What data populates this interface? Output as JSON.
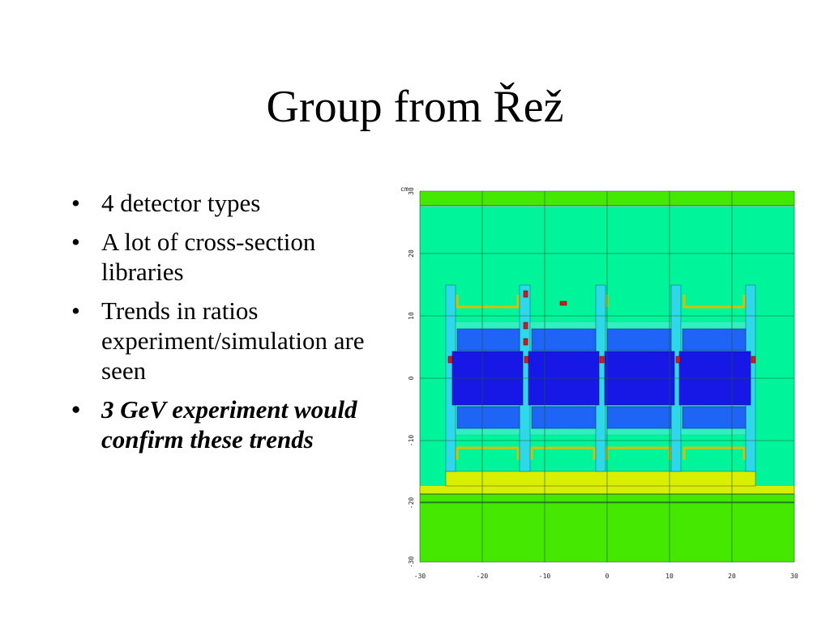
{
  "slide": {
    "title": "Group from Řež",
    "bullets": [
      {
        "text": "4 detector types",
        "emphasis": false
      },
      {
        "text": "A lot of cross-section libraries",
        "emphasis": false
      },
      {
        "text": "Trends in ratios experiment/simulation are seen",
        "emphasis": false
      },
      {
        "text": "3 GeV experiment would confirm these trends",
        "emphasis": true
      }
    ]
  },
  "figure": {
    "unit_label": "cm",
    "x_ticks": [
      "-30",
      "-20",
      "-10",
      "0",
      "10",
      "20",
      "30"
    ],
    "y_ticks": [
      "30",
      "20",
      "10",
      "0",
      "-10",
      "-20",
      "-30"
    ],
    "colors": {
      "background_region": "#00f59a",
      "outer_region": "#44e800",
      "target_core": "#1818e6",
      "target_side": "#1e64f5",
      "yellow_base": "#d8f000",
      "detector": "#d81818",
      "grid": "#1d5a2c"
    }
  }
}
